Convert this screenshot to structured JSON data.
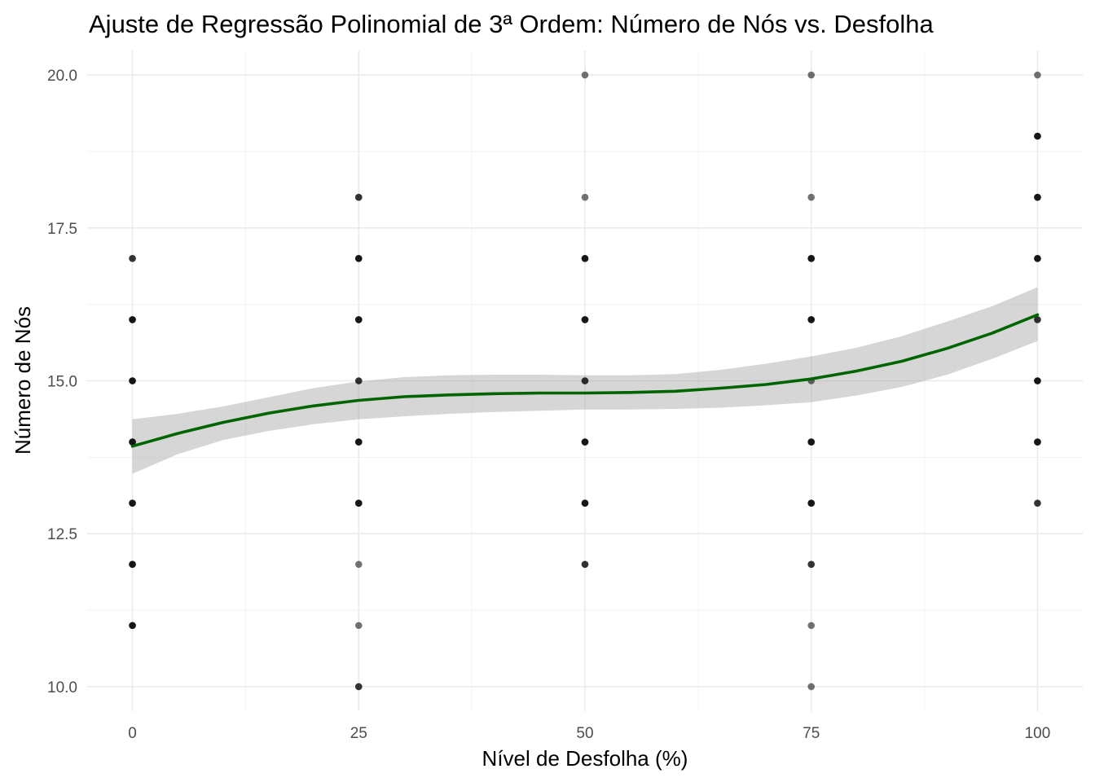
{
  "chart_data": {
    "type": "scatter",
    "title": "Ajuste de Regressão Polinomial de 3ª Ordem: Número de Nós vs. Desfolha",
    "xlabel": "Nível de Desfolha (%)",
    "ylabel": "Número de Nós",
    "xlim": [
      -5,
      105
    ],
    "ylim": [
      9.6,
      20.4
    ],
    "x_ticks": [
      0,
      25,
      50,
      75,
      100
    ],
    "x_tick_labels": [
      "0",
      "25",
      "50",
      "75",
      "100"
    ],
    "y_ticks": [
      10.0,
      12.5,
      15.0,
      17.5,
      20.0
    ],
    "y_tick_labels": [
      "10.0",
      "12.5",
      "15.0",
      "17.5",
      "20.0"
    ],
    "x_minor_ticks": [
      12.5,
      37.5,
      62.5,
      87.5
    ],
    "y_minor_ticks": [
      11.25,
      13.75,
      16.25,
      18.75
    ],
    "grid": true,
    "points": [
      {
        "x": 0,
        "y": 11,
        "n": 3
      },
      {
        "x": 0,
        "y": 12,
        "n": 3
      },
      {
        "x": 0,
        "y": 13,
        "n": 3
      },
      {
        "x": 0,
        "y": 14,
        "n": 3
      },
      {
        "x": 0,
        "y": 15,
        "n": 3
      },
      {
        "x": 0,
        "y": 16,
        "n": 3
      },
      {
        "x": 0,
        "y": 17,
        "n": 2
      },
      {
        "x": 25,
        "y": 10,
        "n": 2
      },
      {
        "x": 25,
        "y": 11,
        "n": 1
      },
      {
        "x": 25,
        "y": 12,
        "n": 1
      },
      {
        "x": 25,
        "y": 13,
        "n": 3
      },
      {
        "x": 25,
        "y": 14,
        "n": 3
      },
      {
        "x": 25,
        "y": 15,
        "n": 2
      },
      {
        "x": 25,
        "y": 16,
        "n": 3
      },
      {
        "x": 25,
        "y": 17,
        "n": 3
      },
      {
        "x": 25,
        "y": 18,
        "n": 2
      },
      {
        "x": 50,
        "y": 12,
        "n": 2
      },
      {
        "x": 50,
        "y": 13,
        "n": 3
      },
      {
        "x": 50,
        "y": 14,
        "n": 3
      },
      {
        "x": 50,
        "y": 15,
        "n": 2
      },
      {
        "x": 50,
        "y": 16,
        "n": 3
      },
      {
        "x": 50,
        "y": 17,
        "n": 3
      },
      {
        "x": 50,
        "y": 18,
        "n": 1
      },
      {
        "x": 50,
        "y": 20,
        "n": 1
      },
      {
        "x": 75,
        "y": 10,
        "n": 1
      },
      {
        "x": 75,
        "y": 11,
        "n": 1
      },
      {
        "x": 75,
        "y": 12,
        "n": 2
      },
      {
        "x": 75,
        "y": 13,
        "n": 3
      },
      {
        "x": 75,
        "y": 14,
        "n": 3
      },
      {
        "x": 75,
        "y": 15,
        "n": 1
      },
      {
        "x": 75,
        "y": 16,
        "n": 3
      },
      {
        "x": 75,
        "y": 17,
        "n": 3
      },
      {
        "x": 75,
        "y": 18,
        "n": 1
      },
      {
        "x": 75,
        "y": 20,
        "n": 1
      },
      {
        "x": 100,
        "y": 13,
        "n": 2
      },
      {
        "x": 100,
        "y": 14,
        "n": 3
      },
      {
        "x": 100,
        "y": 15,
        "n": 3
      },
      {
        "x": 100,
        "y": 16,
        "n": 2
      },
      {
        "x": 100,
        "y": 17,
        "n": 3
      },
      {
        "x": 100,
        "y": 18,
        "n": 3
      },
      {
        "x": 100,
        "y": 19,
        "n": 3
      },
      {
        "x": 100,
        "y": 20,
        "n": 1
      }
    ],
    "fit": {
      "method": "polynomial degree 3 with confidence band",
      "x": [
        0,
        5,
        10,
        15,
        20,
        25,
        30,
        35,
        40,
        45,
        50,
        55,
        60,
        65,
        70,
        75,
        80,
        85,
        90,
        95,
        100
      ],
      "y": [
        13.93,
        14.14,
        14.32,
        14.47,
        14.59,
        14.68,
        14.74,
        14.77,
        14.79,
        14.8,
        14.8,
        14.81,
        14.83,
        14.88,
        14.94,
        15.03,
        15.16,
        15.32,
        15.53,
        15.78,
        16.08
      ],
      "lower": [
        13.48,
        13.8,
        14.03,
        14.18,
        14.29,
        14.37,
        14.42,
        14.46,
        14.49,
        14.51,
        14.53,
        14.53,
        14.54,
        14.56,
        14.6,
        14.65,
        14.76,
        14.9,
        15.1,
        15.36,
        15.65
      ],
      "upper": [
        14.37,
        14.46,
        14.58,
        14.73,
        14.88,
        14.99,
        15.06,
        15.09,
        15.1,
        15.1,
        15.09,
        15.09,
        15.11,
        15.18,
        15.28,
        15.4,
        15.54,
        15.73,
        15.97,
        16.22,
        16.53
      ]
    },
    "colors": {
      "fit_line": "#006400",
      "band": "#999999",
      "points": "#000000",
      "grid": "#ebebeb"
    }
  }
}
